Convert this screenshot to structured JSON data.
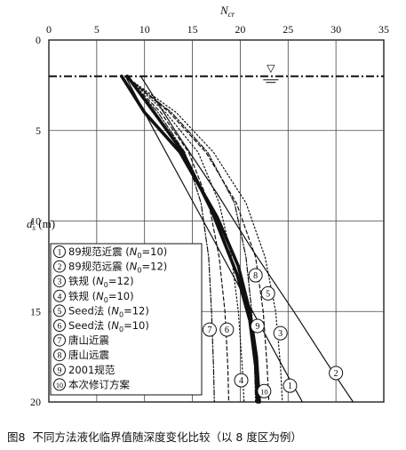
{
  "figure": {
    "number": "图8",
    "caption": "不同方法液化临界值随深度变化比较（以 8 度区为例）"
  },
  "chart_data": {
    "type": "line",
    "title": "",
    "xlabel": "N_cr",
    "ylabel": "d_s (m)",
    "xlim": [
      0,
      35
    ],
    "ylim": [
      20,
      0
    ],
    "x_ticks": [
      0,
      5,
      10,
      15,
      20,
      25,
      30,
      35
    ],
    "y_ticks": [
      0,
      5,
      10,
      15,
      20
    ],
    "grid": true,
    "legend_position": "bottom-left",
    "water_table": {
      "depth": 2,
      "symbol": "▽"
    },
    "series": [
      {
        "id": 1,
        "marker": "1",
        "name": "89规范近震",
        "param": "(N0=10)",
        "style": "solid-thin",
        "points": [
          [
            8,
            2
          ],
          [
            11,
            5
          ],
          [
            14.6,
            8.5
          ],
          [
            17.9,
            11.7
          ],
          [
            21.3,
            15
          ],
          [
            24.6,
            18.2
          ],
          [
            26.5,
            20
          ]
        ]
      },
      {
        "id": 2,
        "marker": "2",
        "name": "89规范远震",
        "param": "(N0=12)",
        "style": "solid-thin",
        "points": [
          [
            9.6,
            2
          ],
          [
            13.2,
            5
          ],
          [
            17.6,
            8.5
          ],
          [
            21.4,
            11.7
          ],
          [
            25.6,
            15
          ],
          [
            29.5,
            18.2
          ],
          [
            31.8,
            20
          ]
        ]
      },
      {
        "id": 3,
        "marker": "3",
        "name": "铁规",
        "param": "(N0=12)",
        "style": "dotted",
        "points": [
          [
            8,
            2
          ],
          [
            13.3,
            4
          ],
          [
            17.2,
            6.2
          ],
          [
            20.6,
            9
          ],
          [
            22.6,
            12
          ],
          [
            23.7,
            15
          ],
          [
            24.2,
            18
          ],
          [
            24.4,
            20
          ]
        ]
      },
      {
        "id": 4,
        "marker": "4",
        "name": "铁规",
        "param": "(N0=10)",
        "style": "dotted",
        "points": [
          [
            8,
            2
          ],
          [
            12.2,
            4
          ],
          [
            15.6,
            6.2
          ],
          [
            17.8,
            9
          ],
          [
            19.1,
            12
          ],
          [
            19.8,
            15
          ],
          [
            20.2,
            18
          ],
          [
            20.4,
            20
          ]
        ]
      },
      {
        "id": 5,
        "marker": "5",
        "name": "Seed法",
        "param": "(N0=12)",
        "style": "dashed",
        "points": [
          [
            8,
            2
          ],
          [
            12.6,
            4
          ],
          [
            16.4,
            6.2
          ],
          [
            19.6,
            9
          ],
          [
            21.6,
            12
          ],
          [
            22.4,
            15
          ],
          [
            22.8,
            18
          ],
          [
            23,
            20
          ]
        ]
      },
      {
        "id": 6,
        "marker": "6",
        "name": "Seed法",
        "param": "(N0=10)",
        "style": "dashed",
        "points": [
          [
            8,
            2
          ],
          [
            11.7,
            4
          ],
          [
            14.6,
            6.2
          ],
          [
            16.7,
            9
          ],
          [
            17.8,
            12
          ],
          [
            18.4,
            15
          ],
          [
            18.7,
            18
          ],
          [
            18.8,
            20
          ]
        ]
      },
      {
        "id": 7,
        "marker": "7",
        "name": "唐山近震",
        "param": "",
        "style": "dash-dot",
        "points": [
          [
            8,
            2
          ],
          [
            11.4,
            4
          ],
          [
            14.2,
            6.2
          ],
          [
            15.9,
            9
          ],
          [
            16.7,
            12
          ],
          [
            17,
            15
          ],
          [
            17.2,
            18
          ],
          [
            17.3,
            20
          ]
        ]
      },
      {
        "id": 8,
        "marker": "8",
        "name": "唐山远震",
        "param": "",
        "style": "dash-dot",
        "points": [
          [
            8,
            2
          ],
          [
            12.8,
            4
          ],
          [
            16.6,
            6.2
          ],
          [
            19.4,
            9
          ],
          [
            20.6,
            12
          ],
          [
            21.2,
            15
          ],
          [
            21.5,
            18
          ],
          [
            21.6,
            20
          ]
        ]
      },
      {
        "id": 9,
        "marker": "9",
        "name": "2001规范",
        "param": "",
        "style": "thick",
        "points": [
          [
            7.6,
            2
          ],
          [
            10,
            4
          ],
          [
            13.7,
            6.2
          ],
          [
            17.6,
            9.8
          ],
          [
            19.8,
            12.5
          ],
          [
            21,
            15
          ],
          [
            21.7,
            17.5
          ],
          [
            22,
            20
          ]
        ]
      },
      {
        "id": 10,
        "marker": "10",
        "name": "本次修订方案",
        "param": "",
        "style": "thick",
        "points": [
          [
            8.2,
            2
          ],
          [
            11,
            4
          ],
          [
            14,
            6.2
          ],
          [
            17,
            9.4
          ],
          [
            19.7,
            13
          ],
          [
            21,
            15.5
          ],
          [
            21.6,
            18
          ],
          [
            21.8,
            20
          ]
        ]
      }
    ],
    "marker_positions": [
      {
        "marker": "1",
        "at": [
          25.2,
          19.1
        ]
      },
      {
        "marker": "2",
        "at": [
          30,
          18.4
        ]
      },
      {
        "marker": "3",
        "at": [
          24.2,
          16.2
        ]
      },
      {
        "marker": "4",
        "at": [
          20.1,
          18.8
        ]
      },
      {
        "marker": "5",
        "at": [
          22.9,
          14.0
        ]
      },
      {
        "marker": "6",
        "at": [
          18.6,
          16.0
        ]
      },
      {
        "marker": "7",
        "at": [
          16.8,
          16.0
        ]
      },
      {
        "marker": "8",
        "at": [
          21.6,
          13.0
        ]
      },
      {
        "marker": "9",
        "at": [
          21.8,
          15.8
        ]
      },
      {
        "marker": "10",
        "at": [
          22.5,
          19.4
        ]
      }
    ]
  }
}
